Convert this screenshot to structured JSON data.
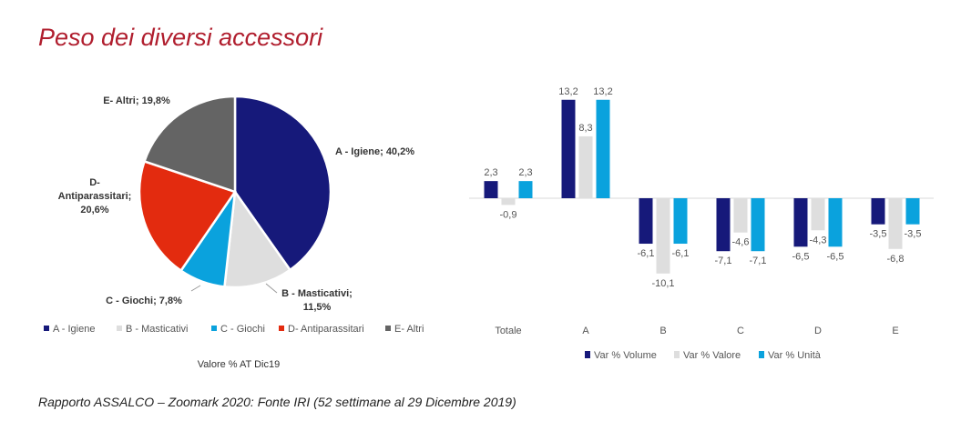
{
  "page": {
    "title": "Peso dei diversi accessori",
    "footer": "Rapporto ASSALCO – Zoomark 2020: Fonte IRI (52 settimane al 29 Dicembre 2019)"
  },
  "chart_data": [
    {
      "type": "pie",
      "caption": "Valore % AT Dic19",
      "legend_position": "bottom",
      "slices": [
        {
          "name": "A - Igiene",
          "value": 40.2,
          "color": "#16197a",
          "label_lines": [
            "A - Igiene; 40,2%"
          ]
        },
        {
          "name": "B - Masticativi",
          "value": 11.5,
          "color": "#dedede",
          "label_lines": [
            "B - Masticativi;",
            "11,5%"
          ]
        },
        {
          "name": "C - Giochi",
          "value": 7.8,
          "color": "#0aa2dd",
          "label_lines": [
            "C - Giochi; 7,8%"
          ]
        },
        {
          "name": "D- Antiparassitari",
          "value": 20.6,
          "color": "#e32b0f",
          "label_lines": [
            "D-",
            "Antiparassitari;",
            "20,6%"
          ]
        },
        {
          "name": "E- Altri",
          "value": 19.8,
          "color": "#646464",
          "label_lines": [
            "E- Altri; 19,8%"
          ]
        }
      ]
    },
    {
      "type": "bar",
      "legend_position": "bottom",
      "grid": false,
      "categories": [
        "Totale",
        "A",
        "B",
        "C",
        "D",
        "E"
      ],
      "series": [
        {
          "name": "Var % Volume",
          "color": "#16197a",
          "values": [
            2.3,
            13.2,
            -6.1,
            -7.1,
            -6.5,
            -3.5
          ],
          "labels": [
            "2,3",
            "13,2",
            "-6,1",
            "-7,1",
            "-6,5",
            "-3,5"
          ]
        },
        {
          "name": "Var % Valore",
          "color": "#dedede",
          "values": [
            -0.9,
            8.3,
            -10.1,
            -4.6,
            -4.3,
            -6.8
          ],
          "labels": [
            "-0,9",
            "8,3",
            "-10,1",
            "-4,6",
            "-4,3",
            "-6,8"
          ]
        },
        {
          "name": "Var % Unità",
          "color": "#0aa2dd",
          "values": [
            2.3,
            13.2,
            -6.1,
            -7.1,
            -6.5,
            -3.5
          ],
          "labels": [
            "2,3",
            "13,2",
            "-6,1",
            "-7,1",
            "-6,5",
            "-3,5"
          ]
        }
      ]
    }
  ]
}
